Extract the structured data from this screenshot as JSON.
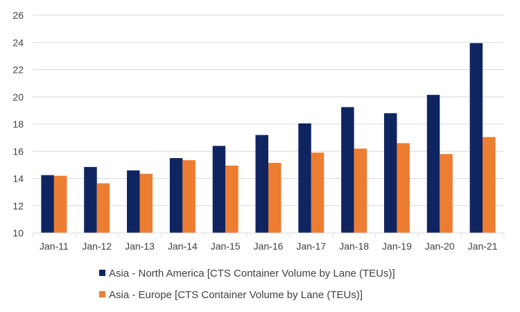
{
  "chart_data": {
    "type": "bar",
    "categories": [
      "Jan-11",
      "Jan-12",
      "Jan-13",
      "Jan-14",
      "Jan-15",
      "Jan-16",
      "Jan-17",
      "Jan-18",
      "Jan-19",
      "Jan-20",
      "Jan-21"
    ],
    "series": [
      {
        "name": "Asia - North America [CTS Container Volume by Lane (TEUs)]",
        "color": "#0f2561",
        "values": [
          14.25,
          14.85,
          14.6,
          15.5,
          16.4,
          17.2,
          18.05,
          19.25,
          18.8,
          20.15,
          23.95
        ]
      },
      {
        "name": "Asia - Europe [CTS Container Volume by Lane (TEUs)]",
        "color": "#ed7d31",
        "values": [
          14.2,
          13.65,
          14.35,
          15.35,
          14.95,
          15.15,
          15.9,
          16.2,
          16.6,
          15.8,
          17.05
        ]
      }
    ],
    "ylim": [
      10,
      26
    ],
    "yticks": [
      10,
      12,
      14,
      16,
      18,
      20,
      22,
      24,
      26
    ],
    "grid": true,
    "legend": "bottom"
  }
}
